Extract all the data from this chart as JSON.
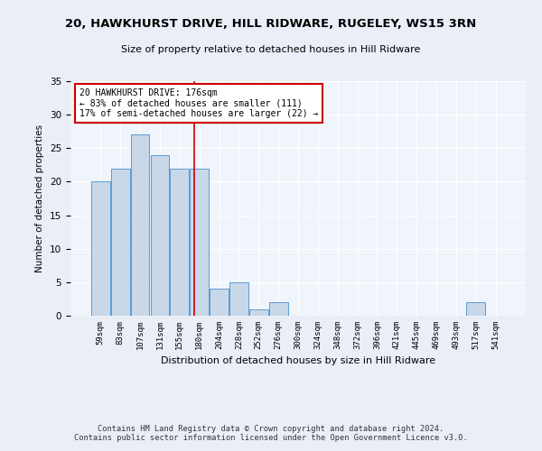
{
  "title": "20, HAWKHURST DRIVE, HILL RIDWARE, RUGELEY, WS15 3RN",
  "subtitle": "Size of property relative to detached houses in Hill Ridware",
  "xlabel": "Distribution of detached houses by size in Hill Ridware",
  "ylabel": "Number of detached properties",
  "categories": [
    "59sqm",
    "83sqm",
    "107sqm",
    "131sqm",
    "155sqm",
    "180sqm",
    "204sqm",
    "228sqm",
    "252sqm",
    "276sqm",
    "300sqm",
    "324sqm",
    "348sqm",
    "372sqm",
    "396sqm",
    "421sqm",
    "445sqm",
    "469sqm",
    "493sqm",
    "517sqm",
    "541sqm"
  ],
  "values": [
    20,
    22,
    27,
    24,
    22,
    22,
    4,
    5,
    1,
    2,
    0,
    0,
    0,
    0,
    0,
    0,
    0,
    0,
    0,
    2,
    0
  ],
  "bar_color": "#c8d8e8",
  "bar_edge_color": "#5b9bd5",
  "property_line_x": 4.75,
  "annotation_line1": "20 HAWKHURST DRIVE: 176sqm",
  "annotation_line2": "← 83% of detached houses are smaller (111)",
  "annotation_line3": "17% of semi-detached houses are larger (22) →",
  "annotation_box_color": "#ffffff",
  "annotation_border_color": "#cc0000",
  "vline_color": "#cc0000",
  "ylim": [
    0,
    35
  ],
  "yticks": [
    0,
    5,
    10,
    15,
    20,
    25,
    30,
    35
  ],
  "footer1": "Contains HM Land Registry data © Crown copyright and database right 2024.",
  "footer2": "Contains public sector information licensed under the Open Government Licence v3.0.",
  "bg_color": "#eaeff7",
  "plot_bg_color": "#f0f4fb"
}
